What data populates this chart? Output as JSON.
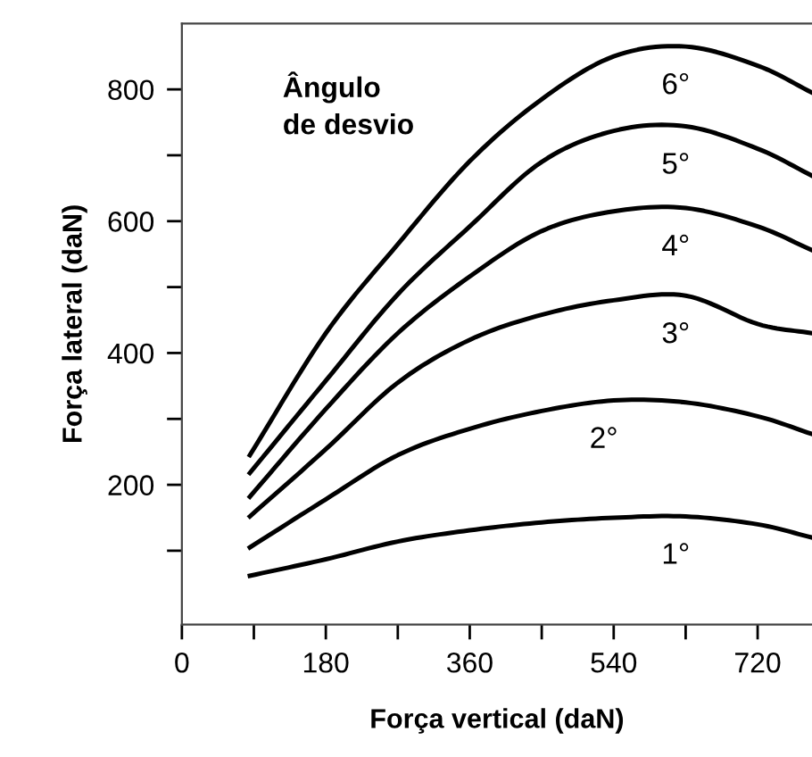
{
  "chart_data": {
    "type": "line",
    "xlabel": "Força vertical (daN)",
    "ylabel": "Força lateral (daN)",
    "x": [
      85,
      180,
      270,
      360,
      450,
      540,
      630,
      720,
      788
    ],
    "series": [
      {
        "name": "1°",
        "color": "#000000",
        "values": [
          62,
          87,
          114,
          131,
          143,
          150,
          152,
          140,
          120
        ]
      },
      {
        "name": "2°",
        "color": "#000000",
        "values": [
          105,
          178,
          245,
          285,
          312,
          328,
          325,
          304,
          277
        ]
      },
      {
        "name": "3°",
        "color": "#000000",
        "values": [
          152,
          254,
          355,
          420,
          458,
          480,
          487,
          444,
          430
        ]
      },
      {
        "name": "4°",
        "color": "#000000",
        "values": [
          182,
          315,
          430,
          516,
          585,
          615,
          620,
          592,
          556
        ]
      },
      {
        "name": "5°",
        "color": "#000000",
        "values": [
          218,
          358,
          489,
          592,
          690,
          737,
          744,
          710,
          669
        ]
      },
      {
        "name": "6°",
        "color": "#000000",
        "values": [
          245,
          430,
          565,
          691,
          785,
          850,
          865,
          836,
          795
        ]
      }
    ],
    "annotations": [
      "Ângulo\nde desvio"
    ],
    "xlim": [
      0,
      788
    ],
    "ylim": [
      -12,
      900
    ],
    "xticks": [
      0,
      {
        "value": 90,
        "label": null
      },
      180,
      {
        "value": 270,
        "label": null
      },
      360,
      {
        "value": 450,
        "label": null
      },
      540,
      {
        "value": 630,
        "label": null
      },
      720
    ],
    "yticks": [
      {
        "value": 100,
        "label": null
      },
      200,
      {
        "value": 300,
        "label": null
      },
      400,
      {
        "value": 500,
        "label": null
      },
      600,
      {
        "value": 700,
        "label": null
      },
      800
    ],
    "grid": false,
    "legend": false,
    "marker": "none",
    "line_style": "solid"
  }
}
